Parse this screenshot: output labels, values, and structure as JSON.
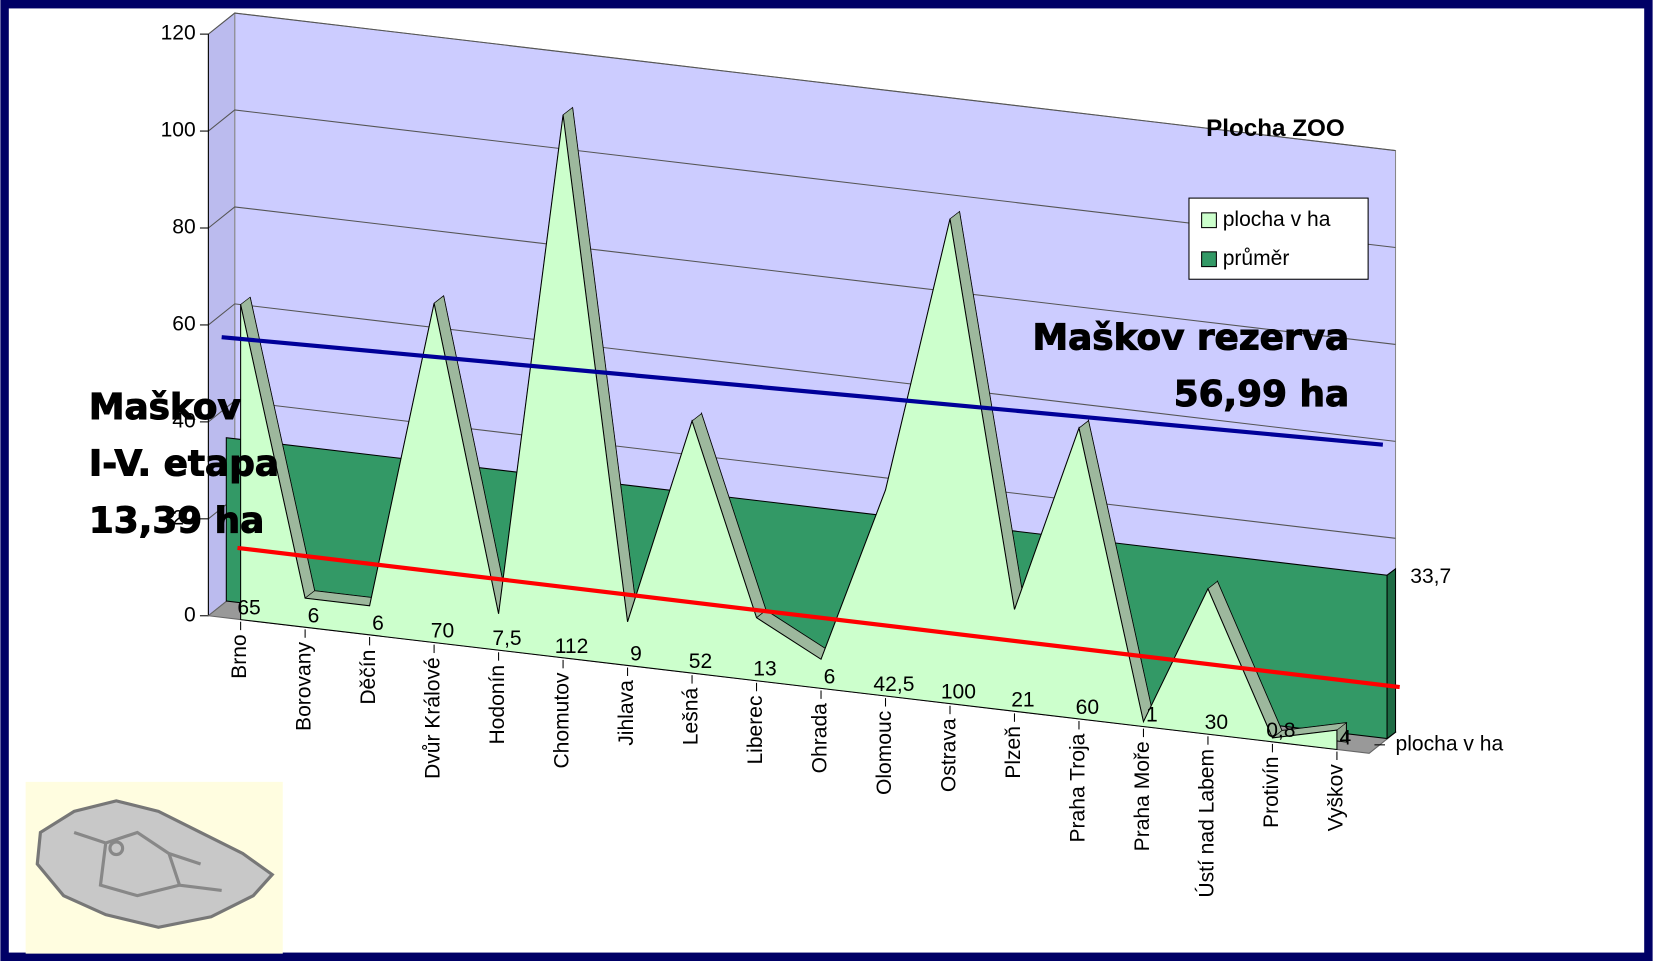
{
  "chart_data": {
    "type": "area3d",
    "title": "Plocha ZOO",
    "categories": [
      "Brno",
      "Borovany",
      "Děčín",
      "Dvůr Králové",
      "Hodonín",
      "Chomutov",
      "Jihlava",
      "Lešná",
      "Liberec",
      "Ohrada",
      "Olomouc",
      "Ostrava",
      "Plzeň",
      "Praha Troja",
      "Praha Moře",
      "Ústí nad Labem",
      "Protivín",
      "Vyškov"
    ],
    "series": [
      {
        "name": "plocha v ha",
        "color": "#ccffcc",
        "values": [
          65,
          6,
          6,
          70,
          7.5,
          112,
          9,
          52,
          13,
          6,
          42.5,
          100,
          21,
          60,
          1,
          30,
          0.8,
          4
        ],
        "value_labels": [
          "65",
          "6",
          "6",
          "70",
          "7,5",
          "112",
          "9",
          "52",
          "13",
          "6",
          "42,5",
          "100",
          "21",
          "60",
          "1",
          "30",
          "0,8",
          "4"
        ]
      },
      {
        "name": "průměr",
        "color": "#339966",
        "value": 33.7,
        "value_label": "33,7"
      }
    ],
    "depth_axis_label": "plocha v ha",
    "ylim": [
      0,
      120
    ],
    "yticks": [
      0,
      20,
      40,
      60,
      80,
      100,
      120
    ],
    "grid": true,
    "annotations": [
      {
        "lines": [
          "Maškov rezerva",
          "56,99 ha"
        ],
        "color": "#000099"
      },
      {
        "lines": [
          "Maškov",
          "I-V. etapa",
          "13,39 ha"
        ],
        "color": "#ff0000"
      }
    ]
  }
}
